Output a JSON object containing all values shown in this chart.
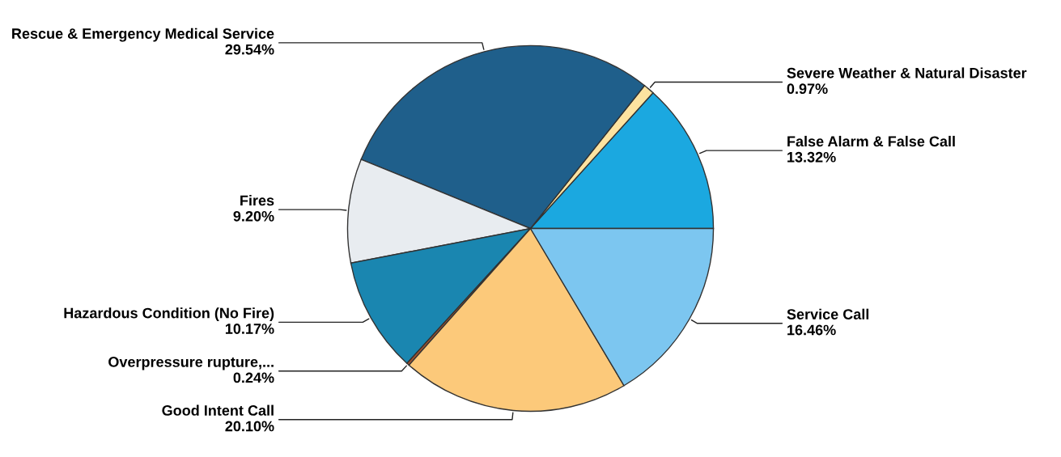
{
  "chart_data": {
    "type": "pie",
    "categories": [
      "False Alarm & False Call",
      "Severe Weather & Natural Disaster",
      "Rescue & Emergency Medical Service",
      "Fires",
      "Hazardous Condition (No Fire)",
      "Overpressure rupture,...",
      "Good Intent Call",
      "Service Call"
    ],
    "values": [
      13.32,
      0.97,
      29.54,
      9.2,
      10.17,
      0.24,
      20.1,
      16.46
    ],
    "value_labels": [
      "13.32%",
      "0.97%",
      "29.54%",
      "9.20%",
      "10.17%",
      "0.24%",
      "20.10%",
      "16.46%"
    ],
    "colors": [
      "#1ba8e0",
      "#fde3a0",
      "#1f5f8b",
      "#e8ecf0",
      "#1a86b0",
      "#a0522d",
      "#fcc97a",
      "#7cc6f0"
    ],
    "legend": false
  }
}
